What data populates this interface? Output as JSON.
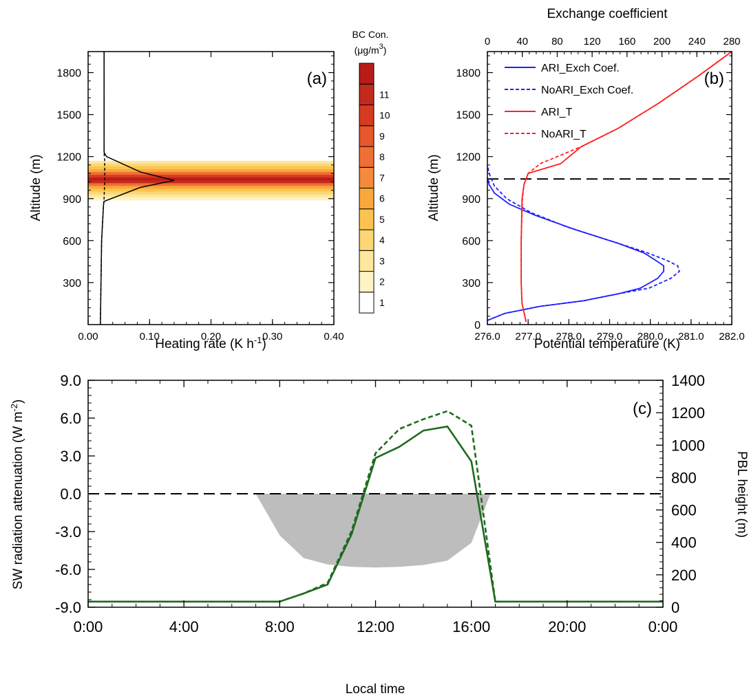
{
  "chart_data": [
    {
      "id": "a",
      "panel_label": "(a)",
      "type": "line",
      "xlabel": "Heating rate (K h",
      "xlabel_sup": "-1",
      "xlabel_end": ")",
      "ylabel": "Altitude (m)",
      "xlim": [
        0,
        0.4
      ],
      "ylim": [
        0,
        1950
      ],
      "xticks": [
        "0.00",
        "0.10",
        "0.20",
        "0.30",
        "0.40"
      ],
      "xtick_values": [
        0,
        0.1,
        0.2,
        0.3,
        0.4
      ],
      "yticks": [
        "300",
        "600",
        "900",
        "1200",
        "1500",
        "1800"
      ],
      "ytick_values": [
        300,
        600,
        900,
        1200,
        1500,
        1800
      ],
      "heatmap": {
        "levels": [
          {
            "altitude": 1160,
            "value": 2
          },
          {
            "altitude": 1140,
            "value": 3
          },
          {
            "altitude": 1120,
            "value": 4
          },
          {
            "altitude": 1100,
            "value": 5
          },
          {
            "altitude": 1080,
            "value": 7
          },
          {
            "altitude": 1060,
            "value": 9
          },
          {
            "altitude": 1040,
            "value": 11
          },
          {
            "altitude": 1020,
            "value": 10
          },
          {
            "altitude": 1000,
            "value": 7
          },
          {
            "altitude": 980,
            "value": 5
          },
          {
            "altitude": 960,
            "value": 4
          },
          {
            "altitude": 940,
            "value": 3
          },
          {
            "altitude": 920,
            "value": 2
          },
          {
            "altitude": 900,
            "value": 1
          }
        ]
      },
      "series": [
        {
          "style": "solid",
          "color": "#000000",
          "x": [
            0.02,
            0.022,
            0.025,
            0.026,
            0.085,
            0.14,
            0.085,
            0.03,
            0.026,
            0.026
          ],
          "y": [
            0,
            600,
            850,
            880,
            980,
            1030,
            1090,
            1200,
            1230,
            1950
          ]
        },
        {
          "style": "dashed",
          "color": "#000000",
          "x": [
            0.02,
            0.022,
            0.025,
            0.026,
            0.027,
            0.027,
            0.026,
            0.026
          ],
          "y": [
            0,
            600,
            850,
            900,
            1030,
            1160,
            1230,
            1950
          ]
        }
      ]
    },
    {
      "id": "colorbar",
      "type": "heatmap",
      "title_line1": "BC Con.",
      "title_line2": "(μg/m",
      "title_sup": "3",
      "title_end": ")",
      "labels": [
        "1",
        "2",
        "3",
        "4",
        "5",
        "6",
        "7",
        "8",
        "9",
        "10",
        "11"
      ],
      "colors": [
        "#ffffff",
        "#fdf3c4",
        "#fde79d",
        "#fcd677",
        "#fcc44e",
        "#f9a93c",
        "#f38a3c",
        "#ef6f35",
        "#e7562c",
        "#d63b22",
        "#c42a1c",
        "#b91c17"
      ]
    },
    {
      "id": "b",
      "panel_label": "(b)",
      "type": "line",
      "top_xlabel": "Exchange coefficient",
      "xlabel": "Potential temperature (K)",
      "ylabel": "Altitude (m)",
      "top_xticks": [
        "0",
        "40",
        "80",
        "120",
        "160",
        "200",
        "240",
        "280"
      ],
      "top_xtick_values": [
        0,
        40,
        80,
        120,
        160,
        200,
        240,
        280
      ],
      "top_xlim": [
        0,
        280
      ],
      "xticks": [
        "276.0",
        "277.0",
        "278.0",
        "279.0",
        "280.0",
        "281.0",
        "282.0"
      ],
      "xtick_values": [
        276,
        277,
        278,
        279,
        280,
        281,
        282
      ],
      "xlim": [
        276,
        282
      ],
      "yticks": [
        "0",
        "300",
        "600",
        "900",
        "1200",
        "1500",
        "1800"
      ],
      "ytick_values": [
        0,
        300,
        600,
        900,
        1200,
        1500,
        1800
      ],
      "ylim": [
        0,
        1950
      ],
      "hline": 1040,
      "legend": [
        "ARI_Exch Coef.",
        "NoARI_Exch Coef.",
        "ARI_T",
        "NoARI_T"
      ],
      "series": [
        {
          "name": "ARI_Exch Coef.",
          "axis": "top",
          "style": "solid",
          "color": "#1f1fff",
          "x": [
            0,
            20,
            60,
            110,
            150,
            175,
            195,
            202,
            202,
            195,
            180,
            150,
            100,
            55,
            25,
            8,
            2,
            0
          ],
          "y": [
            30,
            80,
            130,
            170,
            220,
            260,
            330,
            380,
            420,
            450,
            510,
            580,
            680,
            780,
            860,
            940,
            1000,
            1050
          ]
        },
        {
          "name": "NoARI_Exch Coef.",
          "axis": "top",
          "style": "dashed",
          "color": "#1f1fff",
          "x": [
            0,
            20,
            60,
            110,
            150,
            185,
            210,
            220,
            218,
            205,
            180,
            140,
            90,
            50,
            22,
            8,
            2,
            0
          ],
          "y": [
            30,
            80,
            130,
            170,
            220,
            260,
            330,
            380,
            420,
            460,
            520,
            600,
            700,
            800,
            900,
            990,
            1080,
            1140
          ]
        },
        {
          "name": "ARI_T",
          "axis": "bottom",
          "style": "solid",
          "color": "#ff2020",
          "x": [
            276.95,
            276.85,
            276.83,
            276.83,
            276.85,
            276.9,
            277.0,
            277.8,
            278.3,
            279.2,
            280.2,
            281.2,
            282.0
          ],
          "y": [
            20,
            150,
            300,
            600,
            900,
            1000,
            1080,
            1150,
            1270,
            1400,
            1580,
            1780,
            1950
          ]
        },
        {
          "name": "NoARI_T",
          "axis": "bottom",
          "style": "dashed",
          "color": "#ff2020",
          "x": [
            276.95,
            276.85,
            276.83,
            276.83,
            276.86,
            276.9,
            277.0,
            277.3,
            278.3,
            279.2,
            280.2,
            281.2,
            282.0
          ],
          "y": [
            20,
            150,
            300,
            600,
            900,
            1000,
            1080,
            1150,
            1270,
            1400,
            1580,
            1780,
            1950
          ]
        }
      ]
    },
    {
      "id": "c",
      "panel_label": "(c)",
      "type": "line",
      "xlabel": "Local time",
      "ylabel": "SW radiation attenuation (W m",
      "ylabel_sup": "-2",
      "ylabel_end": ")",
      "y2label": "PBL height (m)",
      "xticks": [
        "0:00",
        "4:00",
        "8:00",
        "12:00",
        "16:00",
        "20:00",
        "0:00"
      ],
      "xtick_values": [
        0,
        4,
        8,
        12,
        16,
        20,
        24
      ],
      "xlim": [
        0,
        24
      ],
      "yticks": [
        "-9.0",
        "-6.0",
        "-3.0",
        "0.0",
        "3.0",
        "6.0",
        "9.0"
      ],
      "ytick_values": [
        -9,
        -6,
        -3,
        0,
        3,
        6,
        9
      ],
      "ylim": [
        -9,
        9
      ],
      "y2ticks": [
        "0",
        "200",
        "400",
        "600",
        "800",
        "1000",
        "1200",
        "1400"
      ],
      "y2tick_values": [
        0,
        200,
        400,
        600,
        800,
        1000,
        1200,
        1400
      ],
      "y2lim": [
        0,
        1400
      ],
      "hline": 0,
      "shaded": {
        "color": "#bdbdbd",
        "x": [
          7,
          8,
          9,
          10,
          11,
          12,
          13,
          14,
          15,
          16,
          16.8
        ],
        "y": [
          0,
          -3.3,
          -5.1,
          -5.6,
          -5.8,
          -5.85,
          -5.8,
          -5.65,
          -5.3,
          -3.9,
          0
        ]
      },
      "series": [
        {
          "axis": "right",
          "style": "solid",
          "color": "#1e6b1e",
          "x": [
            0,
            8,
            9,
            10,
            11,
            12,
            13,
            14,
            15,
            16,
            17,
            24
          ],
          "y": [
            35,
            35,
            85,
            140,
            450,
            920,
            990,
            1090,
            1115,
            900,
            35,
            35
          ]
        },
        {
          "axis": "right",
          "style": "dashed",
          "color": "#1e6b1e",
          "x": [
            0,
            8,
            9,
            10,
            11,
            12,
            13,
            14,
            15,
            16,
            17,
            24
          ],
          "y": [
            35,
            35,
            85,
            150,
            470,
            950,
            1100,
            1160,
            1210,
            1120,
            35,
            35
          ]
        }
      ]
    }
  ]
}
